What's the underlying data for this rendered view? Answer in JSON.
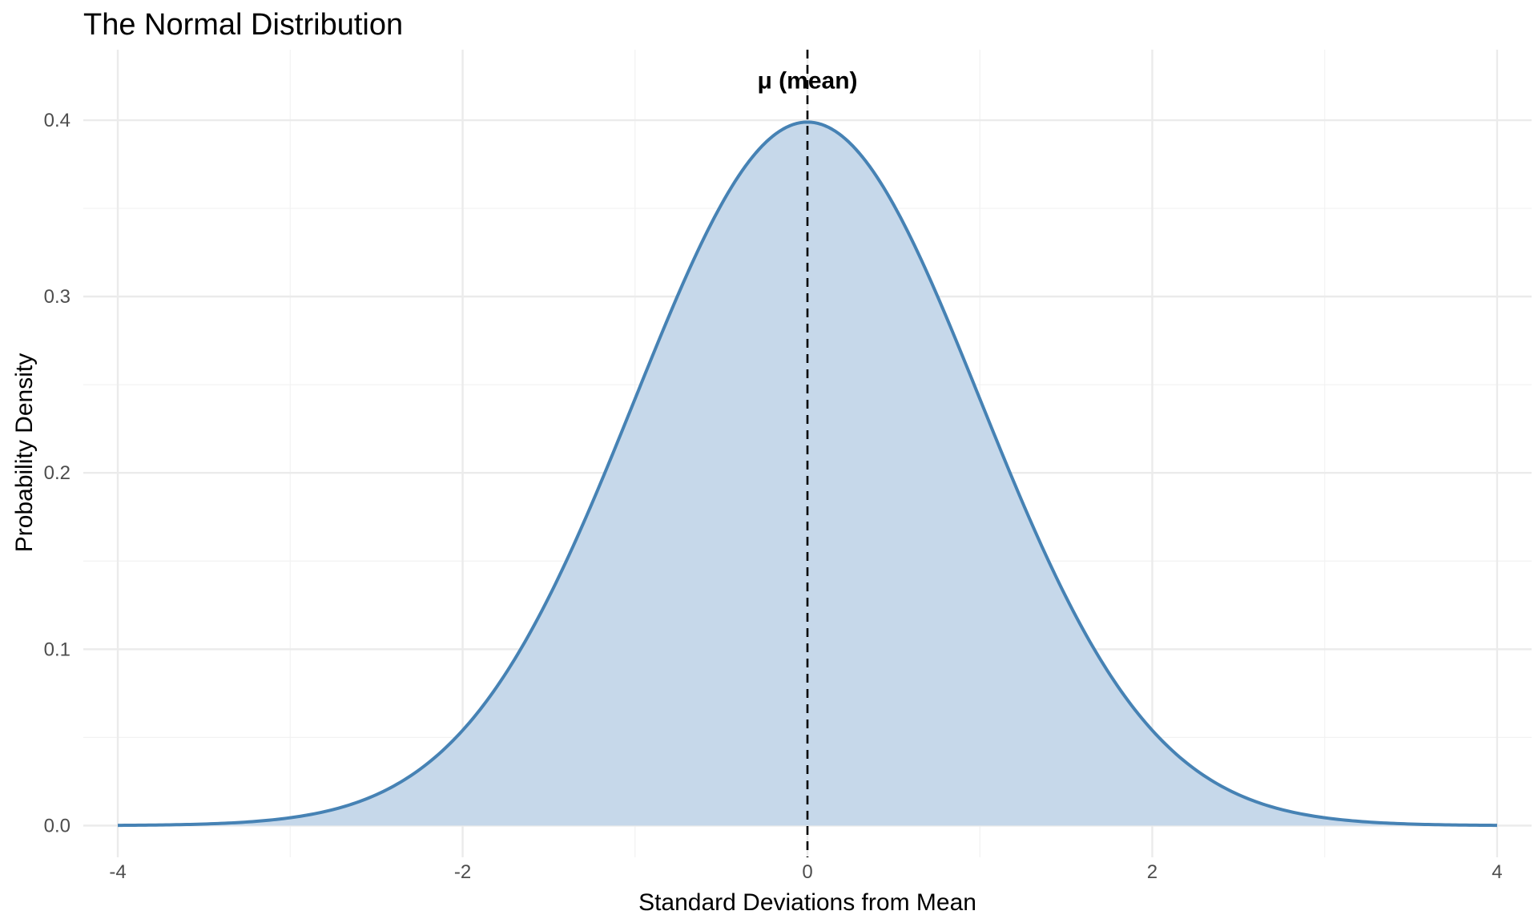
{
  "chart_data": {
    "type": "area",
    "title": "The Normal Distribution",
    "xlabel": "Standard Deviations from Mean",
    "ylabel": "Probability Density",
    "xlim": [
      -4.2,
      4.2
    ],
    "ylim": [
      -0.018,
      0.44
    ],
    "x_ticks": [
      -4,
      -2,
      0,
      2,
      4
    ],
    "x_tick_labels": [
      "-4",
      "-2",
      "0",
      "2",
      "4"
    ],
    "y_ticks": [
      0.0,
      0.1,
      0.2,
      0.3,
      0.4
    ],
    "y_tick_labels": [
      "0.0",
      "0.1",
      "0.2",
      "0.3",
      "0.4"
    ],
    "x_minor": [
      -3,
      -1,
      1,
      3
    ],
    "y_minor": [
      0.05,
      0.15,
      0.25,
      0.35
    ],
    "grid": true,
    "series": [
      {
        "distribution": "standard normal density",
        "x_range": [
          -4,
          4
        ],
        "mean": 0,
        "sd": 1,
        "color": "#4682b4",
        "fill": "#c6d8ea"
      }
    ],
    "reference_line": {
      "x": 0,
      "style": "dashed",
      "color": "#000000"
    },
    "annotations": [
      {
        "text": "μ (mean)",
        "x": 0,
        "y": 0.418
      }
    ]
  }
}
